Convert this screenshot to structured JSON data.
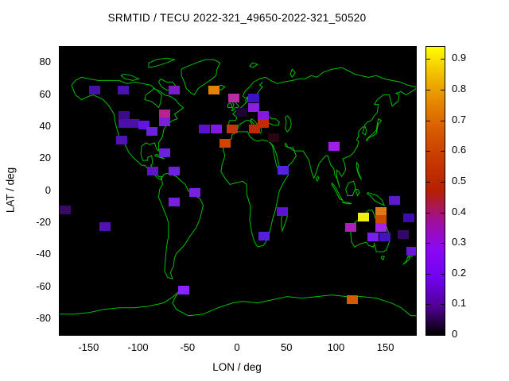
{
  "title": "SRMTID / TECU 2022-321_49650-2022-321_50520",
  "axes": {
    "xlabel": "LON / deg",
    "ylabel": "LAT / deg",
    "x_ticks": [
      -150,
      -100,
      -50,
      0,
      50,
      100,
      150
    ],
    "y_ticks": [
      80,
      60,
      40,
      20,
      0,
      -20,
      -40,
      -60,
      -80
    ],
    "xlim": [
      -180,
      180
    ],
    "ylim": [
      -90,
      90
    ]
  },
  "colorbar": {
    "tick_labels": [
      "0",
      "0.1",
      "0.2",
      "0.3",
      "0.4",
      "0.5",
      "0.6",
      "0.7",
      "0.8",
      "0.9"
    ],
    "tick_values": [
      0,
      0.1,
      0.2,
      0.3,
      0.4,
      0.5,
      0.6,
      0.7,
      0.8,
      0.9
    ],
    "range": [
      0,
      0.94
    ],
    "palette_stops": [
      "#000000",
      "#510096",
      "#7202f2",
      "#8c07f3",
      "#a11096",
      "#b42000",
      "#c63700",
      "#d55700",
      "#e48300",
      "#f2ba00",
      "#ffff00"
    ]
  },
  "colors": {
    "page_background": "#ffffff",
    "plot_background": "#000000",
    "coastline": "#00c000",
    "axis_text": "#000000"
  },
  "chart_data": {
    "type": "heatmap",
    "title": "SRMTID / TECU 2022-321_49650-2022-321_50520",
    "xlabel": "LON / deg",
    "ylabel": "LAT / deg",
    "xlim": [
      -180,
      180
    ],
    "ylim": [
      -90,
      90
    ],
    "colorbar_range": [
      0,
      0.94
    ],
    "cell_size_deg": {
      "lon": 12,
      "lat": 5.5
    },
    "points": [
      {
        "lon": -145,
        "lat": 63,
        "tecu": 0.18,
        "color": "#4a10aa"
      },
      {
        "lon": -116,
        "lat": 63,
        "tecu": 0.18,
        "color": "#4a12b0"
      },
      {
        "lon": -64,
        "lat": 63,
        "tecu": 0.28,
        "color": "#7a1ec8"
      },
      {
        "lon": -24,
        "lat": 63,
        "tecu": 0.8,
        "color": "#e48300"
      },
      {
        "lon": -4,
        "lat": 58,
        "tecu": 0.43,
        "color": "#b82ca8"
      },
      {
        "lon": 16,
        "lat": 58,
        "tecu": 0.15,
        "color": "#3d12c4"
      },
      {
        "lon": 16,
        "lat": 52,
        "tecu": 0.3,
        "color": "#8c1ee0"
      },
      {
        "lon": 4,
        "lat": 49,
        "tecu": 0.04,
        "color": "#1e0430"
      },
      {
        "lon": 26,
        "lat": 47,
        "tecu": 0.3,
        "color": "#8818e0"
      },
      {
        "lon": 26,
        "lat": 42,
        "tecu": 0.57,
        "color": "#c42a06"
      },
      {
        "lon": -34,
        "lat": 38.5,
        "tecu": 0.2,
        "color": "#5c10d0"
      },
      {
        "lon": -22,
        "lat": 38.5,
        "tecu": 0.27,
        "color": "#7d1ae6"
      },
      {
        "lon": -6,
        "lat": 38.5,
        "tecu": 0.57,
        "color": "#c33510"
      },
      {
        "lon": 17,
        "lat": 38.5,
        "tecu": 0.56,
        "color": "#c02808"
      },
      {
        "lon": 36,
        "lat": 33,
        "tecu": 0.05,
        "color": "#2a0410"
      },
      {
        "lon": -13,
        "lat": 30,
        "tecu": 0.63,
        "color": "#d44400"
      },
      {
        "lon": -115,
        "lat": 47,
        "tecu": 0.13,
        "color": "#3a0d8c"
      },
      {
        "lon": -115,
        "lat": 42,
        "tecu": 0.17,
        "color": "#4a10a8"
      },
      {
        "lon": -105,
        "lat": 42,
        "tecu": 0.17,
        "color": "#4a10a8"
      },
      {
        "lon": -95,
        "lat": 41,
        "tecu": 0.23,
        "color": "#6215e0"
      },
      {
        "lon": -74,
        "lat": 48,
        "tecu": 0.45,
        "color": "#b82390"
      },
      {
        "lon": -74,
        "lat": 43,
        "tecu": 0.27,
        "color": "#7a1ed8"
      },
      {
        "lon": -87,
        "lat": 37,
        "tecu": 0.25,
        "color": "#6a22dd"
      },
      {
        "lon": -117,
        "lat": 31.5,
        "tecu": 0.18,
        "color": "#5012b0"
      },
      {
        "lon": -74,
        "lat": 24,
        "tecu": 0.25,
        "color": "#6a22dd"
      },
      {
        "lon": -86,
        "lat": 12.5,
        "tecu": 0.2,
        "color": "#5a18c0"
      },
      {
        "lon": -64,
        "lat": 12.5,
        "tecu": 0.25,
        "color": "#6a22dd"
      },
      {
        "lon": -43.5,
        "lat": -1,
        "tecu": 0.27,
        "color": "#7a1fe0"
      },
      {
        "lon": -64,
        "lat": -7,
        "tecu": 0.27,
        "color": "#7a1fe0"
      },
      {
        "lon": -174,
        "lat": -12,
        "tecu": 0.1,
        "color": "#38086a"
      },
      {
        "lon": -134,
        "lat": -22.5,
        "tecu": 0.18,
        "color": "#5012b0"
      },
      {
        "lon": 45,
        "lat": -13,
        "tecu": 0.2,
        "color": "#5a14cc"
      },
      {
        "lon": 26.5,
        "lat": -28.5,
        "tecu": 0.2,
        "color": "#5520dd"
      },
      {
        "lon": 97,
        "lat": 28,
        "tecu": 0.35,
        "color": "#a01ee8"
      },
      {
        "lon": 45.5,
        "lat": 13,
        "tecu": 0.2,
        "color": "#5522e0"
      },
      {
        "lon": 145,
        "lat": -13,
        "tecu": 0.72,
        "color": "#e07818"
      },
      {
        "lon": 145,
        "lat": -18,
        "tecu": 0.6,
        "color": "#c84c00"
      },
      {
        "lon": 127,
        "lat": -16.5,
        "tecu": 0.95,
        "color": "#f0ee10"
      },
      {
        "lon": 114,
        "lat": -23,
        "tecu": 0.4,
        "color": "#aa22bb"
      },
      {
        "lon": 145,
        "lat": -23,
        "tecu": 0.37,
        "color": "#a524e4"
      },
      {
        "lon": 137,
        "lat": -29,
        "tecu": 0.27,
        "color": "#7720ee"
      },
      {
        "lon": 148.5,
        "lat": -29,
        "tecu": 0.16,
        "color": "#4413c0"
      },
      {
        "lon": 167,
        "lat": -27.5,
        "tecu": 0.09,
        "color": "#330766"
      },
      {
        "lon": 173,
        "lat": -17,
        "tecu": 0.14,
        "color": "#3c0cb0"
      },
      {
        "lon": 176,
        "lat": -37.5,
        "tecu": 0.24,
        "color": "#6619d6"
      },
      {
        "lon": 158.5,
        "lat": -6,
        "tecu": 0.22,
        "color": "#6018cc"
      },
      {
        "lon": 116,
        "lat": -68,
        "tecu": 0.65,
        "color": "#d85a00"
      },
      {
        "lon": -54.5,
        "lat": -62,
        "tecu": 0.3,
        "color": "#8822ff"
      }
    ]
  }
}
